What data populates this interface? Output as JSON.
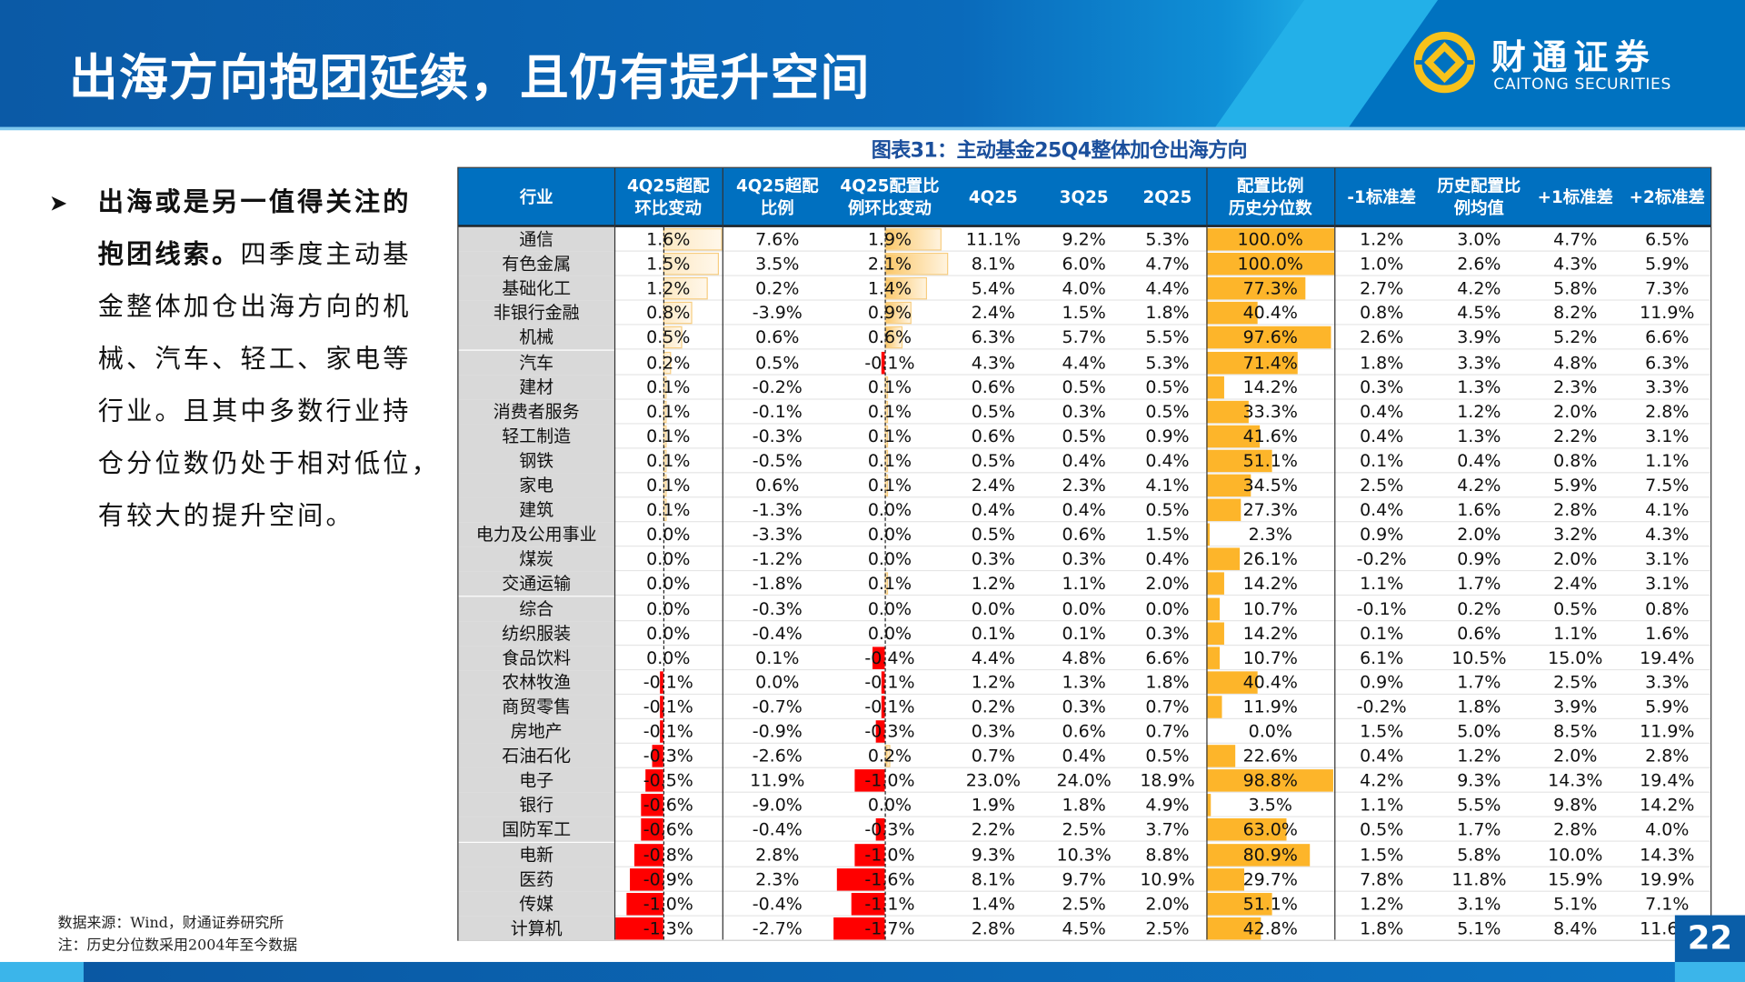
{
  "header": {
    "title": "出海方向抱团延续，且仍有提升空间"
  },
  "logo": {
    "cn": "财通证券",
    "en": "CAITONG SECURITIES"
  },
  "colors": {
    "header_blue": "#0070c0",
    "bar_orange": "#fdb52a",
    "bar_red": "#ff0000",
    "industry_bg": "#d9d9d9",
    "title_blue": "#1b4f9c"
  },
  "bullet_icon": "arrowhead-bullet-icon",
  "paragraph": [
    {
      "bold": "出海或是另一值得关注的",
      "text": ""
    },
    {
      "bold": "抱团线索。",
      "text": "四季度主动基"
    },
    {
      "bold": "",
      "text": "金整体加仓出海方向的机"
    },
    {
      "bold": "",
      "text": "械、汽车、轻工、家电等"
    },
    {
      "bold": "",
      "text": "行业。且其中多数行业持"
    },
    {
      "bold": "",
      "text": "仓分位数仍处于相对低位，"
    },
    {
      "bold": "",
      "text": "有较大的提升空间。"
    }
  ],
  "chart_title": "图表31：主动基金25Q4整体加仓出海方向",
  "table": {
    "headers": [
      "行业",
      "4Q25超配\n环比变动",
      "4Q25超配\n比例",
      "4Q25配置比\n例环比变动",
      "4Q25",
      "3Q25",
      "2Q25",
      "配置比例\n历史分位数",
      "-1标准差",
      "历史配置比\n例均值",
      "+1标准差",
      "+2标准差"
    ],
    "rows": [
      [
        "通信",
        "1.6%",
        "7.6%",
        "1.9%",
        "11.1%",
        "9.2%",
        "5.3%",
        "100.0%",
        "1.2%",
        "3.0%",
        "4.7%",
        "6.5%"
      ],
      [
        "有色金属",
        "1.5%",
        "3.5%",
        "2.1%",
        "8.1%",
        "6.0%",
        "4.7%",
        "100.0%",
        "1.0%",
        "2.6%",
        "4.3%",
        "5.9%"
      ],
      [
        "基础化工",
        "1.2%",
        "0.2%",
        "1.4%",
        "5.4%",
        "4.0%",
        "4.4%",
        "77.3%",
        "2.7%",
        "4.2%",
        "5.8%",
        "7.3%"
      ],
      [
        "非银行金融",
        "0.8%",
        "-3.9%",
        "0.9%",
        "2.4%",
        "1.5%",
        "1.8%",
        "40.4%",
        "0.8%",
        "4.5%",
        "8.2%",
        "11.9%"
      ],
      [
        "机械",
        "0.5%",
        "0.6%",
        "0.6%",
        "6.3%",
        "5.7%",
        "5.5%",
        "97.6%",
        "2.6%",
        "3.9%",
        "5.2%",
        "6.6%"
      ],
      [
        "汽车",
        "0.2%",
        "0.5%",
        "-0.1%",
        "4.3%",
        "4.4%",
        "5.3%",
        "71.4%",
        "1.8%",
        "3.3%",
        "4.8%",
        "6.3%"
      ],
      [
        "建材",
        "0.1%",
        "-0.2%",
        "0.1%",
        "0.6%",
        "0.5%",
        "0.5%",
        "14.2%",
        "0.3%",
        "1.3%",
        "2.3%",
        "3.3%"
      ],
      [
        "消费者服务",
        "0.1%",
        "-0.1%",
        "0.1%",
        "0.5%",
        "0.3%",
        "0.5%",
        "33.3%",
        "0.4%",
        "1.2%",
        "2.0%",
        "2.8%"
      ],
      [
        "轻工制造",
        "0.1%",
        "-0.3%",
        "0.1%",
        "0.6%",
        "0.5%",
        "0.9%",
        "41.6%",
        "0.4%",
        "1.3%",
        "2.2%",
        "3.1%"
      ],
      [
        "钢铁",
        "0.1%",
        "-0.5%",
        "0.1%",
        "0.5%",
        "0.4%",
        "0.4%",
        "51.1%",
        "0.1%",
        "0.4%",
        "0.8%",
        "1.1%"
      ],
      [
        "家电",
        "0.1%",
        "0.6%",
        "0.1%",
        "2.4%",
        "2.3%",
        "4.1%",
        "34.5%",
        "2.5%",
        "4.2%",
        "5.9%",
        "7.5%"
      ],
      [
        "建筑",
        "0.1%",
        "-1.3%",
        "0.0%",
        "0.4%",
        "0.4%",
        "0.5%",
        "27.3%",
        "0.4%",
        "1.6%",
        "2.8%",
        "4.1%"
      ],
      [
        "电力及公用事业",
        "0.0%",
        "-3.3%",
        "0.0%",
        "0.5%",
        "0.6%",
        "1.5%",
        "2.3%",
        "0.9%",
        "2.0%",
        "3.2%",
        "4.3%"
      ],
      [
        "煤炭",
        "0.0%",
        "-1.2%",
        "0.0%",
        "0.3%",
        "0.3%",
        "0.4%",
        "26.1%",
        "-0.2%",
        "0.9%",
        "2.0%",
        "3.1%"
      ],
      [
        "交通运输",
        "0.0%",
        "-1.8%",
        "0.1%",
        "1.2%",
        "1.1%",
        "2.0%",
        "14.2%",
        "1.1%",
        "1.7%",
        "2.4%",
        "3.1%"
      ],
      [
        "综合",
        "0.0%",
        "-0.3%",
        "0.0%",
        "0.0%",
        "0.0%",
        "0.0%",
        "10.7%",
        "-0.1%",
        "0.2%",
        "0.5%",
        "0.8%"
      ],
      [
        "纺织服装",
        "0.0%",
        "-0.4%",
        "0.0%",
        "0.1%",
        "0.1%",
        "0.3%",
        "14.2%",
        "0.1%",
        "0.6%",
        "1.1%",
        "1.6%"
      ],
      [
        "食品饮料",
        "0.0%",
        "0.1%",
        "-0.4%",
        "4.4%",
        "4.8%",
        "6.6%",
        "10.7%",
        "6.1%",
        "10.5%",
        "15.0%",
        "19.4%"
      ],
      [
        "农林牧渔",
        "-0.1%",
        "0.0%",
        "-0.1%",
        "1.2%",
        "1.3%",
        "1.8%",
        "40.4%",
        "0.9%",
        "1.7%",
        "2.5%",
        "3.3%"
      ],
      [
        "商贸零售",
        "-0.1%",
        "-0.7%",
        "-0.1%",
        "0.2%",
        "0.3%",
        "0.7%",
        "11.9%",
        "-0.2%",
        "1.8%",
        "3.9%",
        "5.9%"
      ],
      [
        "房地产",
        "-0.1%",
        "-0.9%",
        "-0.3%",
        "0.3%",
        "0.6%",
        "0.7%",
        "0.0%",
        "1.5%",
        "5.0%",
        "8.5%",
        "11.9%"
      ],
      [
        "石油石化",
        "-0.3%",
        "-2.6%",
        "0.2%",
        "0.7%",
        "0.4%",
        "0.5%",
        "22.6%",
        "0.4%",
        "1.2%",
        "2.0%",
        "2.8%"
      ],
      [
        "电子",
        "-0.5%",
        "11.9%",
        "-1.0%",
        "23.0%",
        "24.0%",
        "18.9%",
        "98.8%",
        "4.2%",
        "9.3%",
        "14.3%",
        "19.4%"
      ],
      [
        "银行",
        "-0.6%",
        "-9.0%",
        "0.0%",
        "1.9%",
        "1.8%",
        "4.9%",
        "3.5%",
        "1.1%",
        "5.5%",
        "9.8%",
        "14.2%"
      ],
      [
        "国防军工",
        "-0.6%",
        "-0.4%",
        "-0.3%",
        "2.2%",
        "2.5%",
        "3.7%",
        "63.0%",
        "0.5%",
        "1.7%",
        "2.8%",
        "4.0%"
      ],
      [
        "电新",
        "-0.8%",
        "2.8%",
        "-1.0%",
        "9.3%",
        "10.3%",
        "8.8%",
        "80.9%",
        "1.5%",
        "5.8%",
        "10.0%",
        "14.3%"
      ],
      [
        "医药",
        "-0.9%",
        "2.3%",
        "-1.6%",
        "8.1%",
        "9.7%",
        "10.9%",
        "29.7%",
        "7.8%",
        "11.8%",
        "15.9%",
        "19.9%"
      ],
      [
        "传媒",
        "-1.0%",
        "-0.4%",
        "-1.1%",
        "1.4%",
        "2.5%",
        "2.0%",
        "51.1%",
        "1.2%",
        "3.1%",
        "5.1%",
        "7.1%"
      ],
      [
        "计算机",
        "-1.3%",
        "-2.7%",
        "-1.7%",
        "2.8%",
        "4.5%",
        "2.5%",
        "42.8%",
        "1.8%",
        "5.1%",
        "8.4%",
        "11.6%"
      ]
    ]
  },
  "source": {
    "line1": "数据来源：Wind，财通证券研究所",
    "line2": "注：历史分位数采用2004年至今数据"
  },
  "page_number": "22"
}
